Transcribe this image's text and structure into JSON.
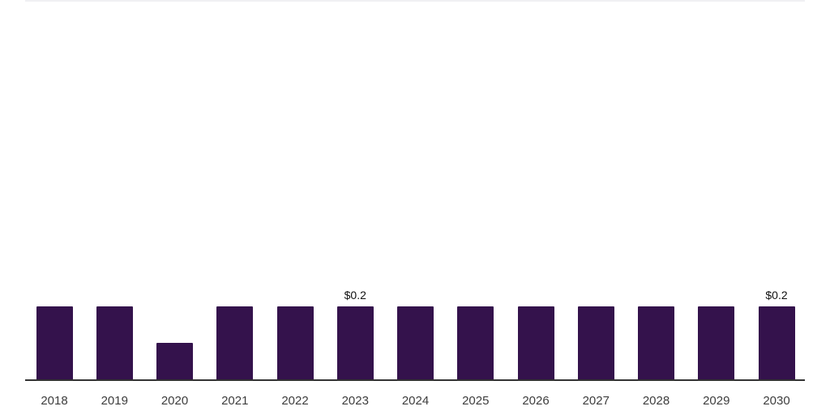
{
  "chart_data": {
    "type": "bar",
    "title": "",
    "xlabel": "",
    "ylabel": "",
    "categories": [
      "2018",
      "2019",
      "2020",
      "2021",
      "2022",
      "2023",
      "2024",
      "2025",
      "2026",
      "2027",
      "2028",
      "2029",
      "2030"
    ],
    "values": [
      0.2,
      0.2,
      0.1,
      0.2,
      0.2,
      0.2,
      0.2,
      0.2,
      0.2,
      0.2,
      0.2,
      0.2,
      0.2
    ],
    "data_labels": [
      "",
      "",
      "",
      "",
      "",
      "$0.2",
      "",
      "",
      "",
      "",
      "",
      "",
      "$0.2"
    ],
    "ylim": [
      0,
      1
    ],
    "grid": false,
    "legend": false,
    "colors": {
      "bar": "#34124C",
      "axis_line": "#333333",
      "tick_label": "#3D3D3D",
      "data_label": "#111111",
      "top_rule": "#F0F0F3",
      "background": "#FFFFFF"
    }
  }
}
